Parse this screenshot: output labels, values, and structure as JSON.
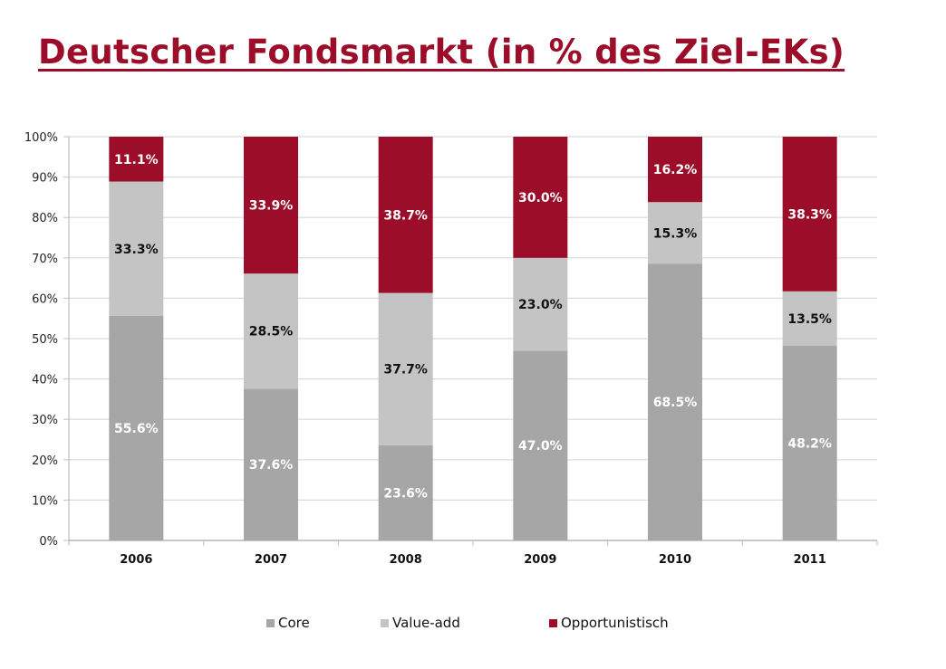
{
  "title": "Deutscher Fondsmarkt (in % des Ziel-EKs)",
  "chart_data": {
    "type": "bar",
    "stacked": true,
    "percent_stacked": true,
    "title": "Deutscher Fondsmarkt (in % des Ziel-EKs)",
    "xlabel": "",
    "ylabel": "",
    "ylim": [
      0,
      100
    ],
    "grid": true,
    "legend_position": "bottom",
    "categories": [
      "2006",
      "2007",
      "2008",
      "2009",
      "2010",
      "2011"
    ],
    "y_ticks": [
      "0%",
      "10%",
      "20%",
      "30%",
      "40%",
      "50%",
      "60%",
      "70%",
      "80%",
      "90%",
      "100%"
    ],
    "series": [
      {
        "name": "Core",
        "color": "#a6a6a6",
        "label_color": "#ffffff",
        "values": [
          55.6,
          37.6,
          23.6,
          47.0,
          68.5,
          48.2
        ],
        "labels": [
          "55.6%",
          "37.6%",
          "23.6%",
          "47.0%",
          "68.5%",
          "48.2%"
        ]
      },
      {
        "name": "Value-add",
        "color": "#c4c4c4",
        "label_color": "#111111",
        "values": [
          33.3,
          28.5,
          37.7,
          23.0,
          15.3,
          13.5
        ],
        "labels": [
          "33.3%",
          "28.5%",
          "37.7%",
          "23.0%",
          "15.3%",
          "13.5%"
        ]
      },
      {
        "name": "Opportunistisch",
        "color": "#9b0d28",
        "label_color": "#ffffff",
        "values": [
          11.1,
          33.9,
          38.7,
          30.0,
          16.2,
          38.3
        ],
        "labels": [
          "11.1%",
          "33.9%",
          "38.7%",
          "30.0%",
          "16.2%",
          "38.3%"
        ]
      }
    ]
  }
}
